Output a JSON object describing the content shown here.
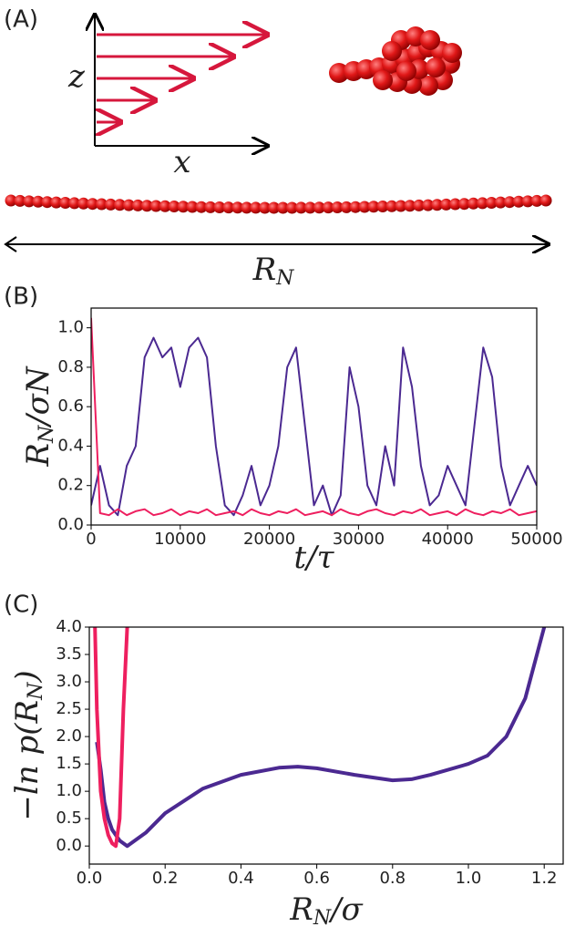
{
  "panel_a": {
    "label": "(A)",
    "z_label": "z",
    "x_label": "x",
    "length_label": [
      "R",
      "N"
    ]
  },
  "chart_data": [
    {
      "type": "line",
      "panel": "(B)",
      "ylabel": [
        "R",
        "N",
        "/σN"
      ],
      "xlabel": "t/τ",
      "xlim": [
        0,
        50000
      ],
      "ylim": [
        0,
        1.1
      ],
      "xticks": [
        0,
        10000,
        20000,
        30000,
        40000,
        50000
      ],
      "yticks": [
        {
          "value": 0,
          "label": "0.0"
        },
        0.2,
        0.4,
        0.6,
        0.8,
        {
          "value": 1,
          "label": "1.0"
        }
      ],
      "x": [
        0,
        1000,
        2000,
        3000,
        4000,
        5000,
        6000,
        7000,
        8000,
        9000,
        10000,
        11000,
        12000,
        13000,
        14000,
        15000,
        16000,
        17000,
        18000,
        19000,
        20000,
        21000,
        22000,
        23000,
        24000,
        25000,
        26000,
        27000,
        28000,
        29000,
        30000,
        31000,
        32000,
        33000,
        34000,
        35000,
        36000,
        37000,
        38000,
        39000,
        40000,
        41000,
        42000,
        43000,
        44000,
        45000,
        46000,
        47000,
        48000,
        49000,
        50000
      ],
      "series": [
        {
          "color": "#4b2991",
          "values": [
            0.1,
            0.3,
            0.1,
            0.05,
            0.3,
            0.4,
            0.85,
            0.95,
            0.85,
            0.9,
            0.7,
            0.9,
            0.95,
            0.85,
            0.4,
            0.1,
            0.05,
            0.15,
            0.3,
            0.1,
            0.2,
            0.4,
            0.8,
            0.9,
            0.5,
            0.1,
            0.2,
            0.05,
            0.15,
            0.8,
            0.6,
            0.2,
            0.1,
            0.4,
            0.2,
            0.9,
            0.7,
            0.3,
            0.1,
            0.15,
            0.3,
            0.2,
            0.1,
            0.5,
            0.9,
            0.75,
            0.3,
            0.1,
            0.2,
            0.3,
            0.2
          ]
        },
        {
          "color": "#ee1f5f",
          "values": [
            1.05,
            0.06,
            0.05,
            0.08,
            0.05,
            0.07,
            0.08,
            0.05,
            0.06,
            0.08,
            0.05,
            0.07,
            0.06,
            0.08,
            0.05,
            0.06,
            0.07,
            0.05,
            0.08,
            0.06,
            0.05,
            0.07,
            0.06,
            0.08,
            0.05,
            0.06,
            0.07,
            0.05,
            0.08,
            0.06,
            0.05,
            0.07,
            0.08,
            0.06,
            0.05,
            0.07,
            0.06,
            0.08,
            0.05,
            0.06,
            0.07,
            0.05,
            0.08,
            0.06,
            0.05,
            0.07,
            0.06,
            0.08,
            0.05,
            0.06,
            0.07
          ]
        }
      ]
    },
    {
      "type": "line",
      "panel": "(C)",
      "ylabel": [
        "−ln p(R",
        "N",
        ")"
      ],
      "xlabel": [
        "R",
        "N",
        "/σ"
      ],
      "xlim": [
        0,
        1.25
      ],
      "ylim": [
        -0.33,
        4.0
      ],
      "xticks": [
        {
          "value": 0,
          "label": "0.0"
        },
        0.2,
        0.4,
        0.6,
        0.8,
        {
          "value": 1,
          "label": "1.0"
        },
        1.2
      ],
      "yticks": [
        {
          "value": 0,
          "label": "0.0"
        },
        0.5,
        {
          "value": 1,
          "label": "1.0"
        },
        1.5,
        {
          "value": 2,
          "label": "2.0"
        },
        2.5,
        {
          "value": 3,
          "label": "3.0"
        },
        3.5,
        {
          "value": 4,
          "label": "4.0"
        }
      ],
      "series": [
        {
          "color": "#4b2991",
          "x": [
            0.02,
            0.03,
            0.04,
            0.05,
            0.06,
            0.08,
            0.1,
            0.15,
            0.2,
            0.3,
            0.4,
            0.5,
            0.55,
            0.6,
            0.7,
            0.8,
            0.85,
            0.9,
            1.0,
            1.05,
            1.1,
            1.15,
            1.2
          ],
          "values": [
            1.9,
            1.4,
            0.8,
            0.5,
            0.3,
            0.1,
            0.0,
            0.25,
            0.6,
            1.05,
            1.3,
            1.43,
            1.45,
            1.42,
            1.3,
            1.2,
            1.22,
            1.3,
            1.5,
            1.65,
            2.0,
            2.7,
            4.0
          ]
        },
        {
          "color": "#ee1f5f",
          "x": [
            0.015,
            0.02,
            0.03,
            0.04,
            0.05,
            0.06,
            0.07,
            0.08,
            0.09,
            0.1
          ],
          "values": [
            4.0,
            2.5,
            1.0,
            0.5,
            0.2,
            0.05,
            0.0,
            0.5,
            2.5,
            4.0
          ]
        }
      ]
    }
  ]
}
